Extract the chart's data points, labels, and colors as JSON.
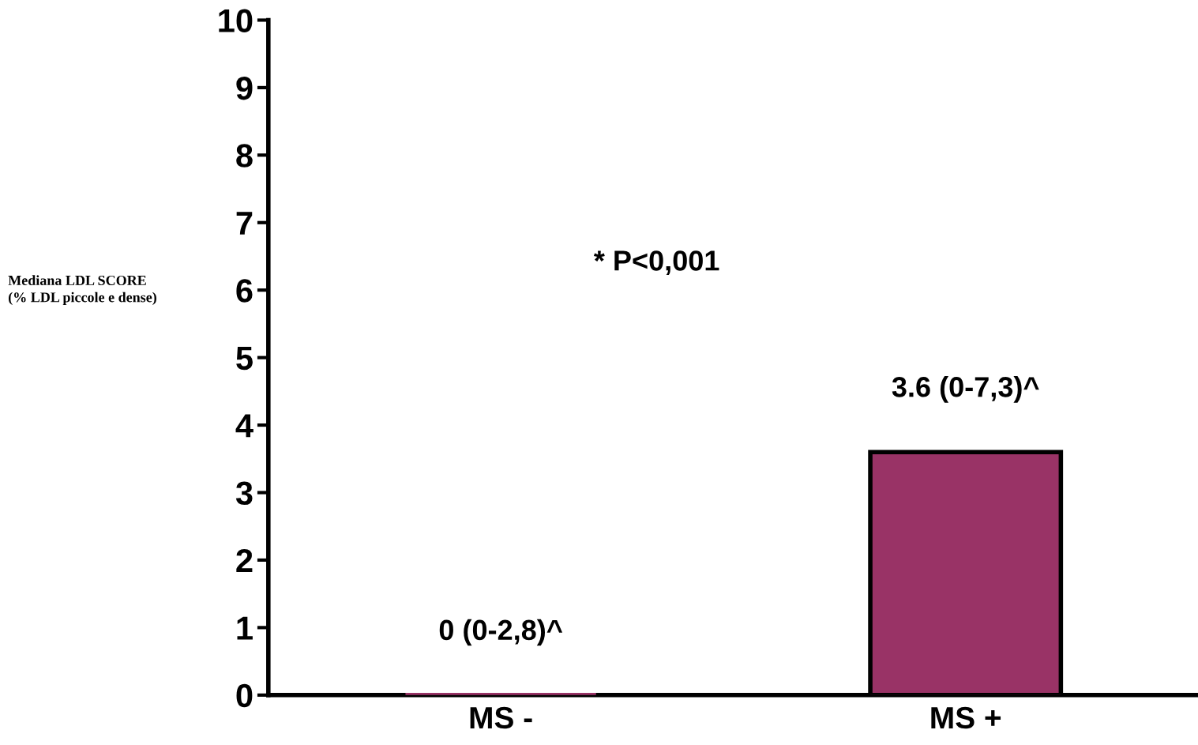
{
  "chart_data": {
    "type": "bar",
    "ylabel": "Mediana LDL SCORE\n(% LDL piccole e dense)",
    "categories": [
      "MS -",
      "MS +"
    ],
    "values": [
      0,
      3.6
    ],
    "color": "#993366",
    "value_labels": [
      "0 (0-2,8)^",
      "3.6 (0-7,3)^"
    ],
    "ylim": [
      0,
      10
    ],
    "yticks": [
      0,
      1,
      2,
      3,
      4,
      5,
      6,
      7,
      8,
      9,
      10
    ],
    "annotations": [
      "* P<0,001"
    ],
    "grid": false,
    "legend": false
  }
}
